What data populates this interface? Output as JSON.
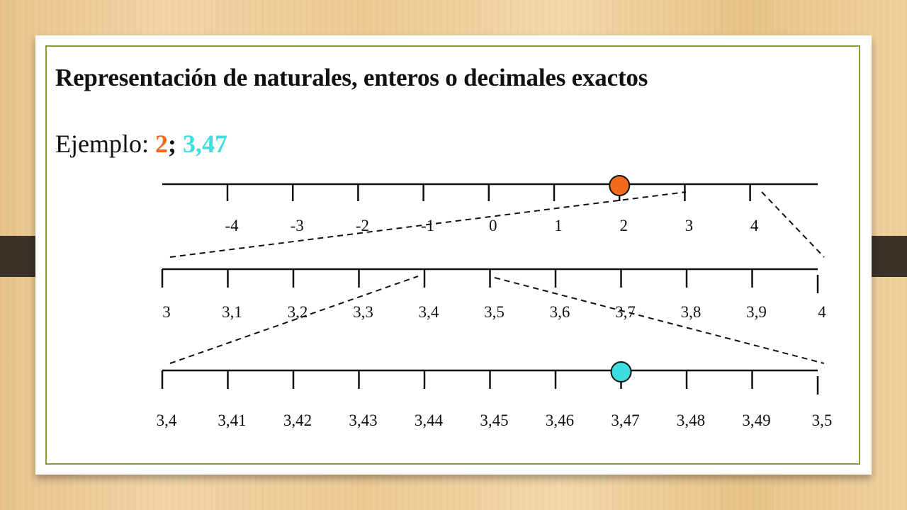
{
  "title": "Representación de naturales, enteros o decimales exactos",
  "example": {
    "label": "Ejemplo:",
    "values": [
      "2",
      "3,47"
    ],
    "separator": ";"
  },
  "colors": {
    "orange": "#f26a1b",
    "cyan": "#3ddde0",
    "frame": "#8b9a3a"
  },
  "number_lines": [
    {
      "name": "integers",
      "ticks": [
        "-4",
        "-3",
        "-2",
        "-1",
        "0",
        "1",
        "2",
        "3",
        "4"
      ],
      "marked": "2",
      "marker_color": "orange"
    },
    {
      "name": "tenths",
      "ticks": [
        "3",
        "3,1",
        "3,2",
        "3,3",
        "3,4",
        "3,5",
        "3,6",
        "3,7",
        "3,8",
        "3,9",
        "4"
      ],
      "marked": null
    },
    {
      "name": "hundredths",
      "ticks": [
        "3,4",
        "3,41",
        "3,42",
        "3,43",
        "3,44",
        "3,45",
        "3,46",
        "3,47",
        "3,48",
        "3,49",
        "3,5"
      ],
      "marked": "3,47",
      "marker_color": "cyan"
    }
  ]
}
